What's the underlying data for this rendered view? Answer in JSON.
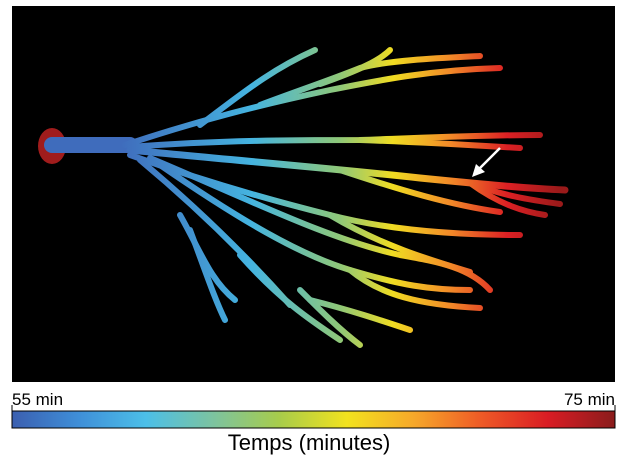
{
  "colorbar": {
    "ticks": [
      {
        "value": 55,
        "label": "55 min"
      },
      {
        "value": 75,
        "label": "75 min"
      }
    ],
    "label": "Temps (minutes)",
    "colormap": [
      "#3b5fb0",
      "#3f8fd8",
      "#4cbfe8",
      "#7cc3a0",
      "#a8cc4a",
      "#f2e21e",
      "#f6a82a",
      "#ee5a26",
      "#d91c24",
      "#8a1c1c"
    ]
  }
}
